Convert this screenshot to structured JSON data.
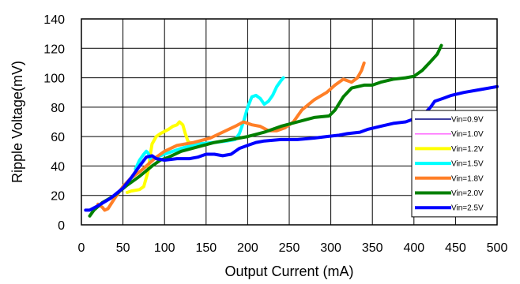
{
  "chart_data": {
    "type": "line",
    "title": "",
    "xlabel": "Output Current (mA)",
    "ylabel": "Ripple Voltage(mV)",
    "xlim": [
      0,
      500
    ],
    "ylim": [
      0,
      140
    ],
    "xticks": [
      0,
      50,
      100,
      150,
      200,
      250,
      300,
      350,
      400,
      450,
      500
    ],
    "yticks": [
      0,
      20,
      40,
      60,
      80,
      100,
      120,
      140
    ],
    "grid": true,
    "legend_position": "right",
    "series": [
      {
        "name": "Vin=0.9V",
        "color": "#000080",
        "width": 1.5,
        "points": []
      },
      {
        "name": "Vin=1.0V",
        "color": "#ff66ff",
        "width": 1.5,
        "points": []
      },
      {
        "name": "Vin=1.2V",
        "color": "#ffff00",
        "width": 4,
        "points": [
          [
            55,
            22
          ],
          [
            60,
            23
          ],
          [
            70,
            24
          ],
          [
            75,
            26
          ],
          [
            80,
            36
          ],
          [
            83,
            48
          ],
          [
            85,
            55
          ],
          [
            90,
            60
          ],
          [
            95,
            62
          ],
          [
            105,
            65
          ],
          [
            110,
            67
          ],
          [
            115,
            68
          ],
          [
            118,
            70
          ],
          [
            122,
            68
          ],
          [
            125,
            62
          ],
          [
            128,
            57
          ],
          [
            132,
            55
          ]
        ]
      },
      {
        "name": "Vin=1.5V",
        "color": "#00ffff",
        "width": 4,
        "points": [
          [
            65,
            38
          ],
          [
            70,
            44
          ],
          [
            75,
            48
          ],
          [
            78,
            50
          ],
          [
            80,
            49
          ],
          [
            84,
            44
          ],
          [
            90,
            46
          ],
          [
            100,
            48
          ],
          [
            120,
            52
          ],
          [
            140,
            55
          ],
          [
            160,
            56
          ],
          [
            175,
            57
          ],
          [
            185,
            58
          ],
          [
            190,
            62
          ],
          [
            195,
            70
          ],
          [
            200,
            80
          ],
          [
            205,
            87
          ],
          [
            210,
            88
          ],
          [
            215,
            86
          ],
          [
            220,
            82
          ],
          [
            225,
            84
          ],
          [
            230,
            88
          ],
          [
            235,
            94
          ],
          [
            240,
            98
          ],
          [
            243,
            100
          ]
        ]
      },
      {
        "name": "Vin=1.8V",
        "color": "#ff7f27",
        "width": 4,
        "points": [
          [
            20,
            14
          ],
          [
            25,
            12
          ],
          [
            28,
            10
          ],
          [
            32,
            11
          ],
          [
            40,
            18
          ],
          [
            50,
            26
          ],
          [
            60,
            32
          ],
          [
            70,
            36
          ],
          [
            80,
            41
          ],
          [
            90,
            46
          ],
          [
            100,
            50
          ],
          [
            115,
            54
          ],
          [
            135,
            56
          ],
          [
            155,
            59
          ],
          [
            170,
            63
          ],
          [
            185,
            67
          ],
          [
            195,
            70
          ],
          [
            205,
            68
          ],
          [
            215,
            67
          ],
          [
            225,
            64
          ],
          [
            235,
            64
          ],
          [
            245,
            66
          ],
          [
            255,
            70
          ],
          [
            265,
            78
          ],
          [
            280,
            85
          ],
          [
            295,
            90
          ],
          [
            305,
            95
          ],
          [
            315,
            99
          ],
          [
            325,
            97
          ],
          [
            332,
            100
          ],
          [
            337,
            105
          ],
          [
            340,
            110
          ]
        ]
      },
      {
        "name": "Vin=2.0V",
        "color": "#008000",
        "width": 4,
        "points": [
          [
            10,
            6
          ],
          [
            15,
            10
          ],
          [
            25,
            15
          ],
          [
            40,
            20
          ],
          [
            55,
            27
          ],
          [
            70,
            33
          ],
          [
            85,
            40
          ],
          [
            95,
            44
          ],
          [
            105,
            46
          ],
          [
            120,
            50
          ],
          [
            140,
            53
          ],
          [
            160,
            56
          ],
          [
            180,
            58
          ],
          [
            200,
            60
          ],
          [
            220,
            63
          ],
          [
            240,
            67
          ],
          [
            260,
            70
          ],
          [
            280,
            73
          ],
          [
            298,
            74
          ],
          [
            305,
            78
          ],
          [
            315,
            87
          ],
          [
            325,
            93
          ],
          [
            340,
            95
          ],
          [
            350,
            95
          ],
          [
            360,
            97
          ],
          [
            375,
            99
          ],
          [
            390,
            100
          ],
          [
            400,
            101
          ],
          [
            410,
            105
          ],
          [
            420,
            111
          ],
          [
            428,
            116
          ],
          [
            433,
            122
          ]
        ]
      },
      {
        "name": "Vin=2.5V",
        "color": "#0000ff",
        "width": 4,
        "points": [
          [
            5,
            10
          ],
          [
            10,
            10
          ],
          [
            20,
            13
          ],
          [
            35,
            18
          ],
          [
            50,
            25
          ],
          [
            60,
            32
          ],
          [
            70,
            40
          ],
          [
            78,
            46
          ],
          [
            85,
            47
          ],
          [
            90,
            45
          ],
          [
            100,
            44
          ],
          [
            115,
            45
          ],
          [
            130,
            45
          ],
          [
            140,
            46
          ],
          [
            150,
            48
          ],
          [
            160,
            48
          ],
          [
            170,
            47
          ],
          [
            180,
            48
          ],
          [
            190,
            52
          ],
          [
            200,
            54
          ],
          [
            210,
            56
          ],
          [
            220,
            57
          ],
          [
            240,
            58
          ],
          [
            260,
            58
          ],
          [
            280,
            59
          ],
          [
            295,
            60
          ],
          [
            310,
            61
          ],
          [
            320,
            62
          ],
          [
            335,
            63
          ],
          [
            345,
            65
          ],
          [
            360,
            67
          ],
          [
            375,
            69
          ],
          [
            390,
            70
          ],
          [
            400,
            72
          ],
          [
            410,
            74
          ],
          [
            420,
            80
          ],
          [
            425,
            84
          ],
          [
            435,
            86
          ],
          [
            445,
            88
          ],
          [
            460,
            90
          ],
          [
            480,
            92
          ],
          [
            500,
            94
          ]
        ]
      }
    ]
  }
}
